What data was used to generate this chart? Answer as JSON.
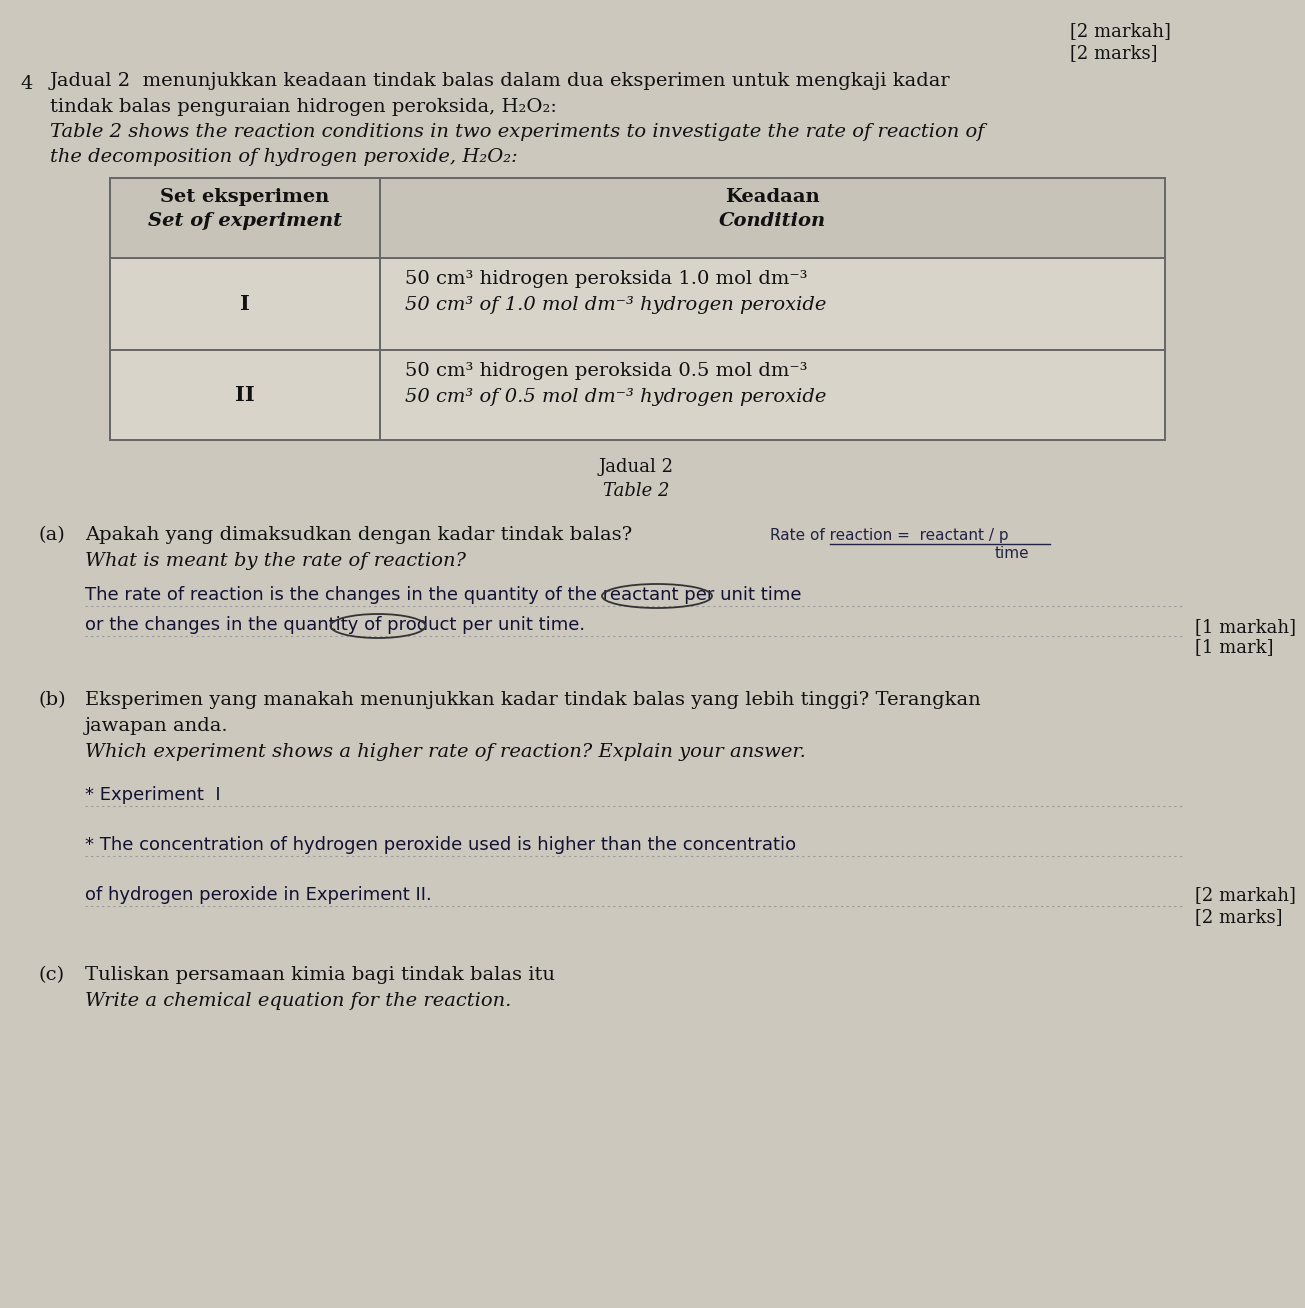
{
  "bg_color": "#cdc8be",
  "text_color": "#1a1a1a",
  "top_right_line1": "[2 markah]",
  "top_right_line2": "[2 marks]",
  "q_number": "4",
  "malay_intro_1": "Jadual 2  menunjukkan keadaan tindak balas dalam dua eksperimen untuk mengkaji kadar",
  "malay_intro_2": "tindak balas penguraian hidrogen peroksida, H₂O₂:",
  "english_intro_1": "Table 2 shows the reaction conditions in two experiments to investigate the rate of reaction of",
  "english_intro_2": "the decomposition of hydrogen peroxide, H₂O₂:",
  "table_header_col1_line1": "Set eksperimen",
  "table_header_col1_line2": "Set of experiment",
  "table_header_col2_line1": "Keadaan",
  "table_header_col2_line2": "Condition",
  "exp_I": "I",
  "exp_I_malay": "50 cm³ hidrogen peroksida 1.0 mol dm⁻³",
  "exp_I_english": "50 cm³ of 1.0 mol dm⁻³ hydrogen peroxide",
  "exp_II": "II",
  "exp_II_malay": "50 cm³ hidrogen peroksida 0.5 mol dm⁻³",
  "exp_II_english": "50 cm³ of 0.5 mol dm⁻³ hydrogen peroxide",
  "caption_malay": "Jadual 2",
  "caption_english": "Table 2",
  "qa_malay": "Apakah yang dimaksudkan dengan kadar tindak balas?",
  "qa_english": "What is meant by the rate of reaction?",
  "qa_annot1": "Rate of reaction =  reactant / p",
  "qa_annot2": "time",
  "qa_ans1": "The rate of reaction is the changes in the quantity of the reactant per unit time",
  "qa_ans2": "or the changes in the quantity of product per unit time.",
  "qa_mark1": "[1 markah]",
  "qa_mark2": "[1 mark]",
  "qb_malay1": "Eksperimen yang manakah menunjukkan kadar tindak balas yang lebih tinggi? Terangkan",
  "qb_malay2": "jawapan anda.",
  "qb_english": "Which experiment shows a higher rate of reaction? Explain your answer.",
  "qb_ans1": "* Experiment  I",
  "qb_ans2": "* The concentration of hydrogen peroxide used is higher than the concentratio",
  "qb_ans3": "of hydrogen peroxide in Experiment II.",
  "qb_mark1": "[2 markah]",
  "qb_mark2": "[2 marks]",
  "qc_malay": "Tuliskan persamaan kimia bagi tindak balas itu",
  "qc_english": "Write a chemical equation for the reaction."
}
